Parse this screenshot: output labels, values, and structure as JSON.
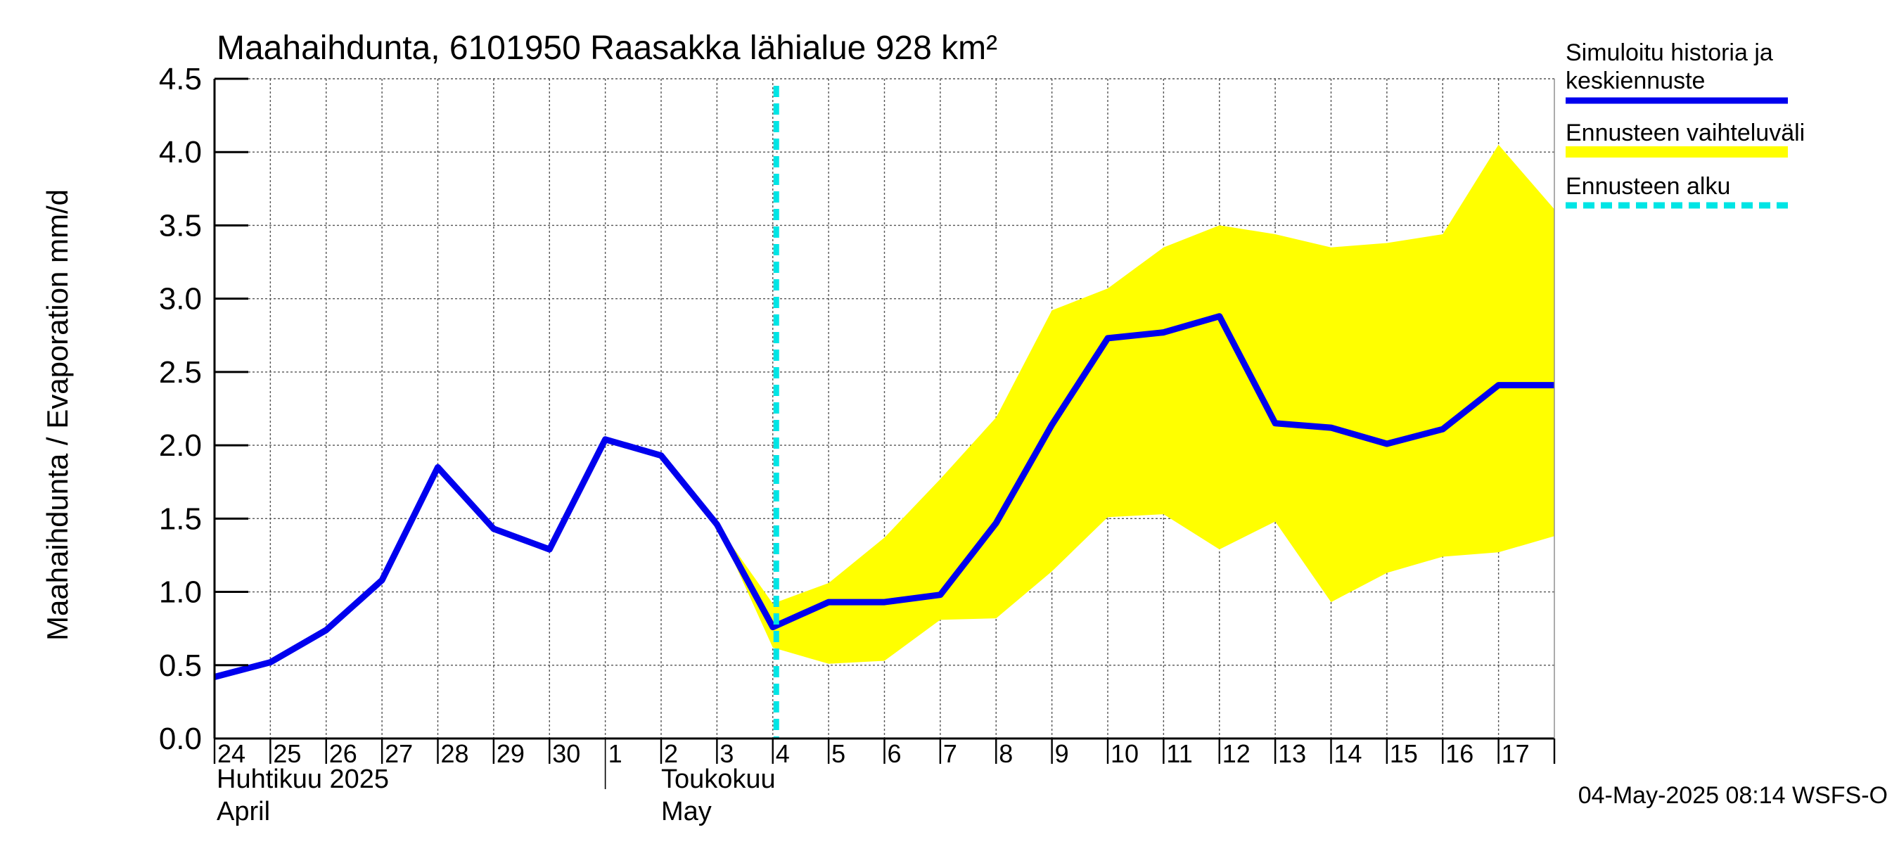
{
  "chart_data": {
    "type": "line",
    "title": "Maahaihdunta, 6101950 Raasakka lähialue 928 km²",
    "ylabel": "Maahaihdunta / Evaporation   mm/d",
    "ylim": [
      0,
      4.5
    ],
    "yticks": [
      "0.0",
      "0.5",
      "1.0",
      "1.5",
      "2.0",
      "2.5",
      "3.0",
      "3.5",
      "4.0",
      "4.5"
    ],
    "xlim": [
      "2025-04-24",
      "2025-05-18"
    ],
    "x_tick_labels": [
      "24",
      "25",
      "26",
      "27",
      "28",
      "29",
      "30",
      "1",
      "2",
      "3",
      "4",
      "5",
      "6",
      "7",
      "8",
      "9",
      "10",
      "11",
      "12",
      "13",
      "14",
      "15",
      "16",
      "17"
    ],
    "month_labels": [
      {
        "line1": "Huhtikuu  2025",
        "line2": "April"
      },
      {
        "line1": "Toukokuu",
        "line2": "May"
      }
    ],
    "grid": true,
    "series": [
      {
        "name": "Simuloitu historia ja keskiennuste",
        "color": "#0000ee",
        "x": [
          "2025-04-24",
          "2025-04-25",
          "2025-04-26",
          "2025-04-27",
          "2025-04-28",
          "2025-04-29",
          "2025-04-30",
          "2025-05-01",
          "2025-05-02",
          "2025-05-03",
          "2025-05-04",
          "2025-05-05",
          "2025-05-06",
          "2025-05-07",
          "2025-05-08",
          "2025-05-09",
          "2025-05-10",
          "2025-05-11",
          "2025-05-12",
          "2025-05-13",
          "2025-05-14",
          "2025-05-15",
          "2025-05-16",
          "2025-05-17",
          "2025-05-18"
        ],
        "values": [
          0.42,
          0.52,
          0.74,
          1.08,
          1.85,
          1.43,
          1.29,
          2.04,
          1.93,
          1.46,
          0.76,
          0.93,
          0.93,
          0.98,
          1.47,
          2.14,
          2.73,
          2.77,
          2.88,
          2.15,
          2.12,
          2.01,
          2.11,
          2.41,
          2.41
        ]
      }
    ],
    "band": {
      "name": "Ennusteen vaihteluväli",
      "color": "#ffff00",
      "x": [
        "2025-05-03",
        "2025-05-04",
        "2025-05-05",
        "2025-05-06",
        "2025-05-07",
        "2025-05-08",
        "2025-05-09",
        "2025-05-10",
        "2025-05-11",
        "2025-05-12",
        "2025-05-13",
        "2025-05-14",
        "2025-05-15",
        "2025-05-16",
        "2025-05-17",
        "2025-05-18"
      ],
      "lower": [
        1.46,
        0.62,
        0.51,
        0.53,
        0.81,
        0.82,
        1.14,
        1.51,
        1.53,
        1.29,
        1.48,
        0.93,
        1.13,
        1.24,
        1.27,
        1.38
      ],
      "upper": [
        1.46,
        0.92,
        1.06,
        1.37,
        1.77,
        2.19,
        2.92,
        3.07,
        3.35,
        3.5,
        3.44,
        3.35,
        3.38,
        3.44,
        4.05,
        3.61
      ]
    },
    "forecast_start": {
      "name": "Ennusteen alku",
      "color": "#00e5e5",
      "x": "2025-05-04"
    },
    "legend": {
      "position": "right",
      "items": [
        {
          "line1": "Simuloitu historia ja",
          "line2": "keskiennuste",
          "color": "#0000ee",
          "style": "solid"
        },
        {
          "line1": "Ennusteen vaihteluväli",
          "line2": "",
          "color": "#ffff00",
          "style": "solid"
        },
        {
          "line1": "Ennusteen alku",
          "line2": "",
          "color": "#00e5e5",
          "style": "dashed"
        }
      ]
    },
    "footer": "04-May-2025 08:14 WSFS-O"
  }
}
